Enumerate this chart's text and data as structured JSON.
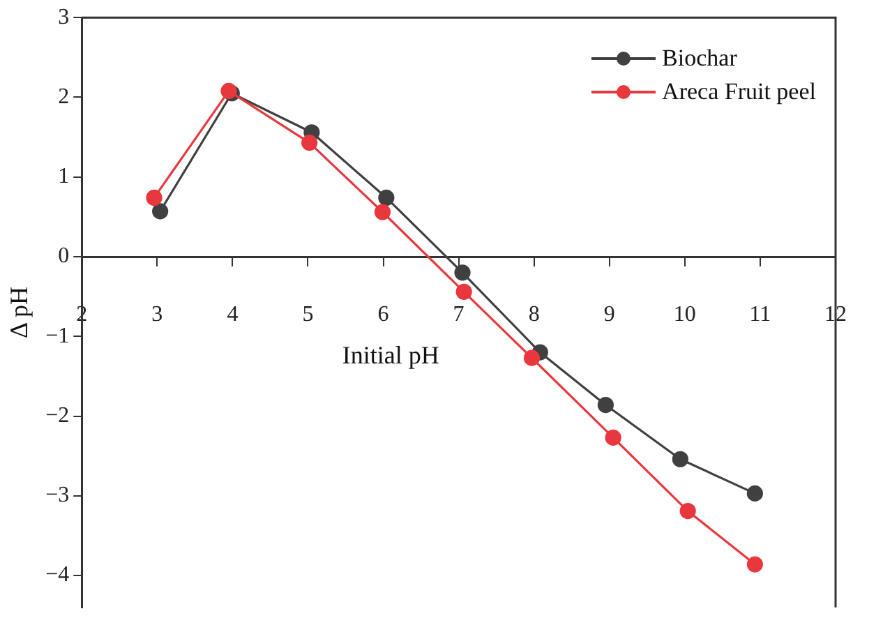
{
  "chart_data": {
    "type": "line",
    "xlabel": "Initial pH",
    "ylabel": "Δ pH",
    "xlim": [
      2,
      12
    ],
    "xticks": [
      2,
      3,
      4,
      5,
      6,
      7,
      8,
      9,
      10,
      11,
      12
    ],
    "ylim": [
      -4.4,
      3
    ],
    "yticks": [
      -4,
      -3,
      -2,
      -1,
      0,
      1,
      2,
      3
    ],
    "grid": false,
    "legend": "top right",
    "marker": "circle",
    "line_style": "solid",
    "series": [
      {
        "name": "Biochar",
        "color": "#404040",
        "x": [
          3.04,
          3.99,
          5.05,
          6.04,
          7.05,
          8.08,
          8.95,
          9.94,
          10.93
        ],
        "values": [
          0.57,
          2.05,
          1.56,
          0.74,
          -0.2,
          -1.2,
          -1.86,
          -2.54,
          -2.97
        ]
      },
      {
        "name": "Areca Fruit peel",
        "color": "#e8383d",
        "x": [
          2.96,
          3.95,
          5.02,
          5.99,
          7.07,
          7.97,
          9.05,
          10.04,
          10.93
        ],
        "values": [
          0.74,
          2.08,
          1.43,
          0.56,
          -0.44,
          -1.27,
          -2.27,
          -3.19,
          -3.86
        ]
      }
    ]
  }
}
